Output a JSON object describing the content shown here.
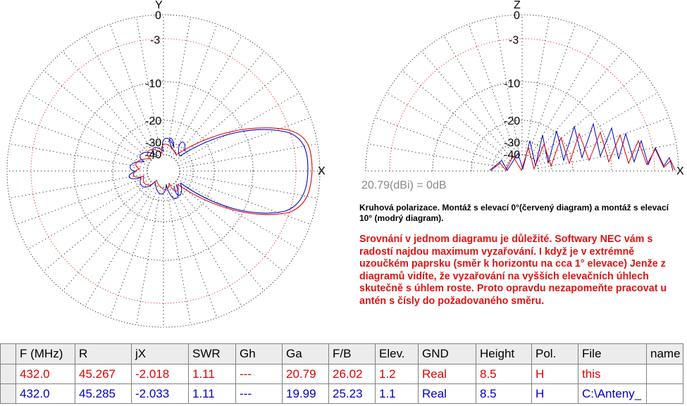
{
  "plot_left": {
    "axis_y": "Y",
    "axis_x": "X",
    "ring_labels": [
      "0",
      "-3",
      "-10",
      "-20",
      "-30",
      "-40"
    ]
  },
  "plot_right": {
    "axis_z": "Z",
    "axis_x": "X",
    "ring_labels": [
      "0",
      "-3",
      "-10",
      "-20",
      "-30",
      "-40"
    ]
  },
  "gain_reference": "20.79(dBi) = 0dB",
  "caption": "Kruhová polarizace. Montáž s elevací 0°(červený diagram) a montáž s elevací 10° (modrý diagram).",
  "note": "Srovnání v jednom diagramu je důležité. Softwary NEC vám s radostí najdou maximum vyzařování. I když je v extrémně uzoučkém paprsku (směr k horizontu na cca 1° elevace) Jenže z diagramů vidíte, že vyzařování na vyšších elevačních úhlech skutečně s úhlem roste. Proto opravdu nezapomeňte pracovat u antén s čísly do požadovaného směru.",
  "colors": {
    "red_series": "#e00000",
    "blue_series": "#0000c8",
    "grid": "#000000",
    "note": "#e01414"
  },
  "table": {
    "headers": [
      "",
      "F (MHz)",
      "R",
      "jX",
      "SWR",
      "Gh",
      "Ga",
      "F/B",
      "Elev.",
      "GND",
      "Height",
      "Pol.",
      "File",
      "name"
    ],
    "rows": [
      [
        "",
        "432.0",
        "45.267",
        "-2.018",
        "1.11",
        "---",
        "20.79",
        "26.02",
        "1.2",
        "Real",
        "8.5",
        "H",
        "this",
        ""
      ],
      [
        "",
        "432.0",
        "45.285",
        "-2.033",
        "1.11",
        "---",
        "19.99",
        "25.23",
        "1.1",
        "Real",
        "8.5",
        "H",
        "C:\\Anteny_",
        ""
      ]
    ]
  }
}
